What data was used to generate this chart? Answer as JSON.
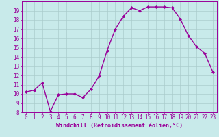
{
  "x": [
    0,
    1,
    2,
    3,
    4,
    5,
    6,
    7,
    8,
    9,
    10,
    11,
    12,
    13,
    14,
    15,
    16,
    17,
    18,
    19,
    20,
    21,
    22,
    23
  ],
  "y": [
    10.2,
    10.4,
    11.2,
    8.1,
    9.9,
    10.0,
    10.0,
    9.6,
    10.5,
    11.9,
    14.7,
    17.0,
    18.4,
    19.3,
    19.0,
    19.4,
    19.4,
    19.4,
    19.3,
    18.1,
    16.3,
    15.1,
    14.4,
    12.4
  ],
  "line_color": "#990099",
  "marker": "D",
  "marker_size": 2,
  "bg_color": "#c8eaea",
  "grid_color": "#aacccc",
  "xlabel": "Windchill (Refroidissement éolien,°C)",
  "xlabel_fontsize": 6.0,
  "ylim": [
    8,
    20
  ],
  "xlim": [
    -0.5,
    23.5
  ],
  "yticks": [
    8,
    9,
    10,
    11,
    12,
    13,
    14,
    15,
    16,
    17,
    18,
    19
  ],
  "xticks": [
    0,
    1,
    2,
    3,
    4,
    5,
    6,
    7,
    8,
    9,
    10,
    11,
    12,
    13,
    14,
    15,
    16,
    17,
    18,
    19,
    20,
    21,
    22,
    23
  ],
  "tick_fontsize": 5.5,
  "line_width": 1.0
}
